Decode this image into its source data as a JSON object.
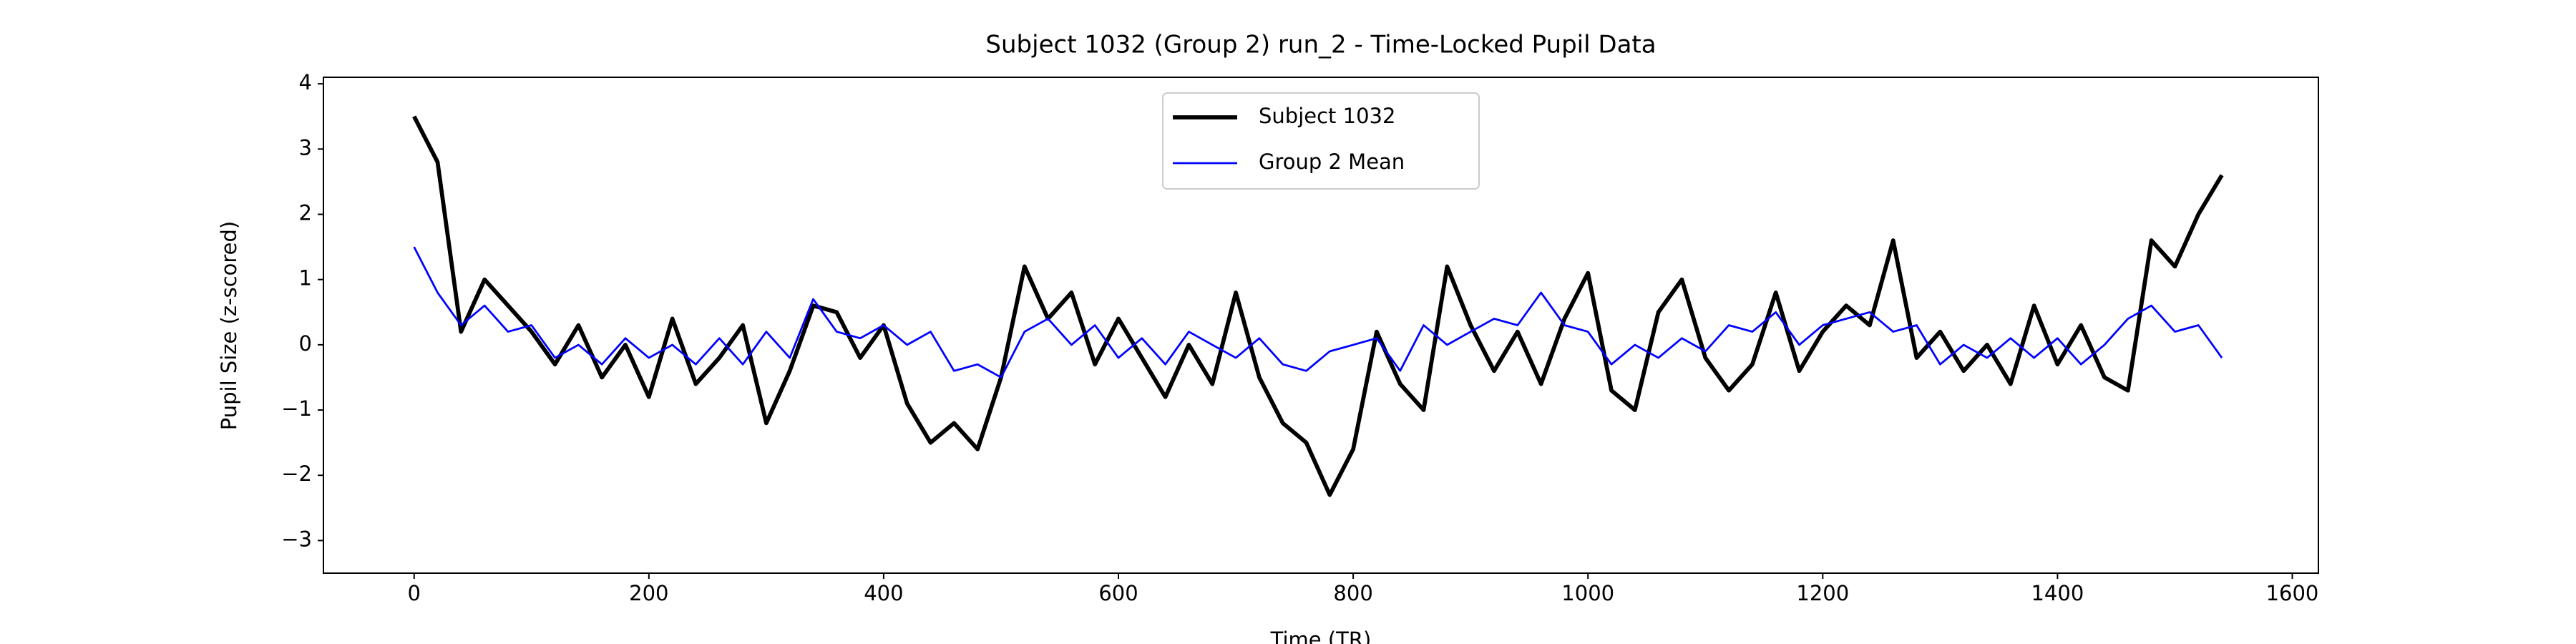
{
  "chart_data": {
    "type": "line",
    "title": "Subject 1032 (Group 2) run_2 - Time-Locked Pupil Data",
    "xlabel": "Time (TR)",
    "ylabel": "Pupil Size (z-scored)",
    "x": [
      0,
      20,
      40,
      60,
      80,
      100,
      120,
      140,
      160,
      180,
      200,
      220,
      240,
      260,
      280,
      300,
      320,
      340,
      360,
      380,
      400,
      420,
      440,
      460,
      480,
      500,
      520,
      540,
      560,
      580,
      600,
      620,
      640,
      660,
      680,
      700,
      720,
      740,
      760,
      780,
      800,
      820,
      840,
      860,
      880,
      900,
      920,
      940,
      960,
      980,
      1000,
      1020,
      1040,
      1060,
      1080,
      1100,
      1120,
      1140,
      1160,
      1180,
      1200,
      1220,
      1240,
      1260,
      1280,
      1300,
      1320,
      1340,
      1360,
      1380,
      1400,
      1420,
      1440,
      1460,
      1480,
      1500,
      1520,
      1540
    ],
    "series": [
      {
        "name": "Subject 1032",
        "color": "#000000",
        "width": 2.5,
        "values": [
          3.5,
          2.8,
          0.2,
          1.0,
          0.6,
          0.2,
          -0.3,
          0.3,
          -0.5,
          0.0,
          -0.8,
          0.4,
          -0.6,
          -0.2,
          0.3,
          -1.2,
          -0.4,
          0.6,
          0.5,
          -0.2,
          0.3,
          -0.9,
          -1.5,
          -1.2,
          -1.6,
          -0.5,
          1.2,
          0.4,
          0.8,
          -0.3,
          0.4,
          -0.2,
          -0.8,
          0.0,
          -0.6,
          0.8,
          -0.5,
          -1.2,
          -1.5,
          -2.3,
          -1.6,
          0.2,
          -0.6,
          -1.0,
          1.2,
          0.3,
          -0.4,
          0.2,
          -0.6,
          0.4,
          1.1,
          -0.7,
          -1.0,
          0.5,
          1.0,
          -0.2,
          -0.7,
          -0.3,
          0.8,
          -0.4,
          0.2,
          0.6,
          0.3,
          1.6,
          -0.2,
          0.2,
          -0.4,
          0.0,
          -0.6,
          0.6,
          -0.3,
          0.3,
          -0.5,
          -0.7,
          1.6,
          1.2,
          2.0,
          2.6
        ]
      },
      {
        "name": "Group 2 Mean",
        "color": "#0000ff",
        "width": 1.2,
        "values": [
          1.5,
          0.8,
          0.3,
          0.6,
          0.2,
          0.3,
          -0.2,
          0.0,
          -0.3,
          0.1,
          -0.2,
          0.0,
          -0.3,
          0.1,
          -0.3,
          0.2,
          -0.2,
          0.7,
          0.2,
          0.1,
          0.3,
          0.0,
          0.2,
          -0.4,
          -0.3,
          -0.5,
          0.2,
          0.4,
          0.0,
          0.3,
          -0.2,
          0.1,
          -0.3,
          0.2,
          0.0,
          -0.2,
          0.1,
          -0.3,
          -0.4,
          -0.1,
          0.0,
          0.1,
          -0.4,
          0.3,
          0.0,
          0.2,
          0.4,
          0.3,
          0.8,
          0.3,
          0.2,
          -0.3,
          0.0,
          -0.2,
          0.1,
          -0.1,
          0.3,
          0.2,
          0.5,
          0.0,
          0.3,
          0.4,
          0.5,
          0.2,
          0.3,
          -0.3,
          0.0,
          -0.2,
          0.1,
          -0.2,
          0.1,
          -0.3,
          0.0,
          0.4,
          0.6,
          0.2,
          0.3,
          -0.2
        ]
      }
    ],
    "xlim": [
      -77.25,
      1622.25
    ],
    "xticks": [
      0,
      200,
      400,
      600,
      800,
      1000,
      1200,
      1400,
      1600
    ],
    "ylim": [
      -3.5,
      4.1
    ],
    "yticks": [
      {
        "value": -3,
        "label": "−3"
      },
      {
        "value": -2,
        "label": "−2"
      },
      {
        "value": -1,
        "label": "−1"
      },
      0,
      1,
      2,
      3,
      4
    ],
    "legend": "upper center"
  }
}
